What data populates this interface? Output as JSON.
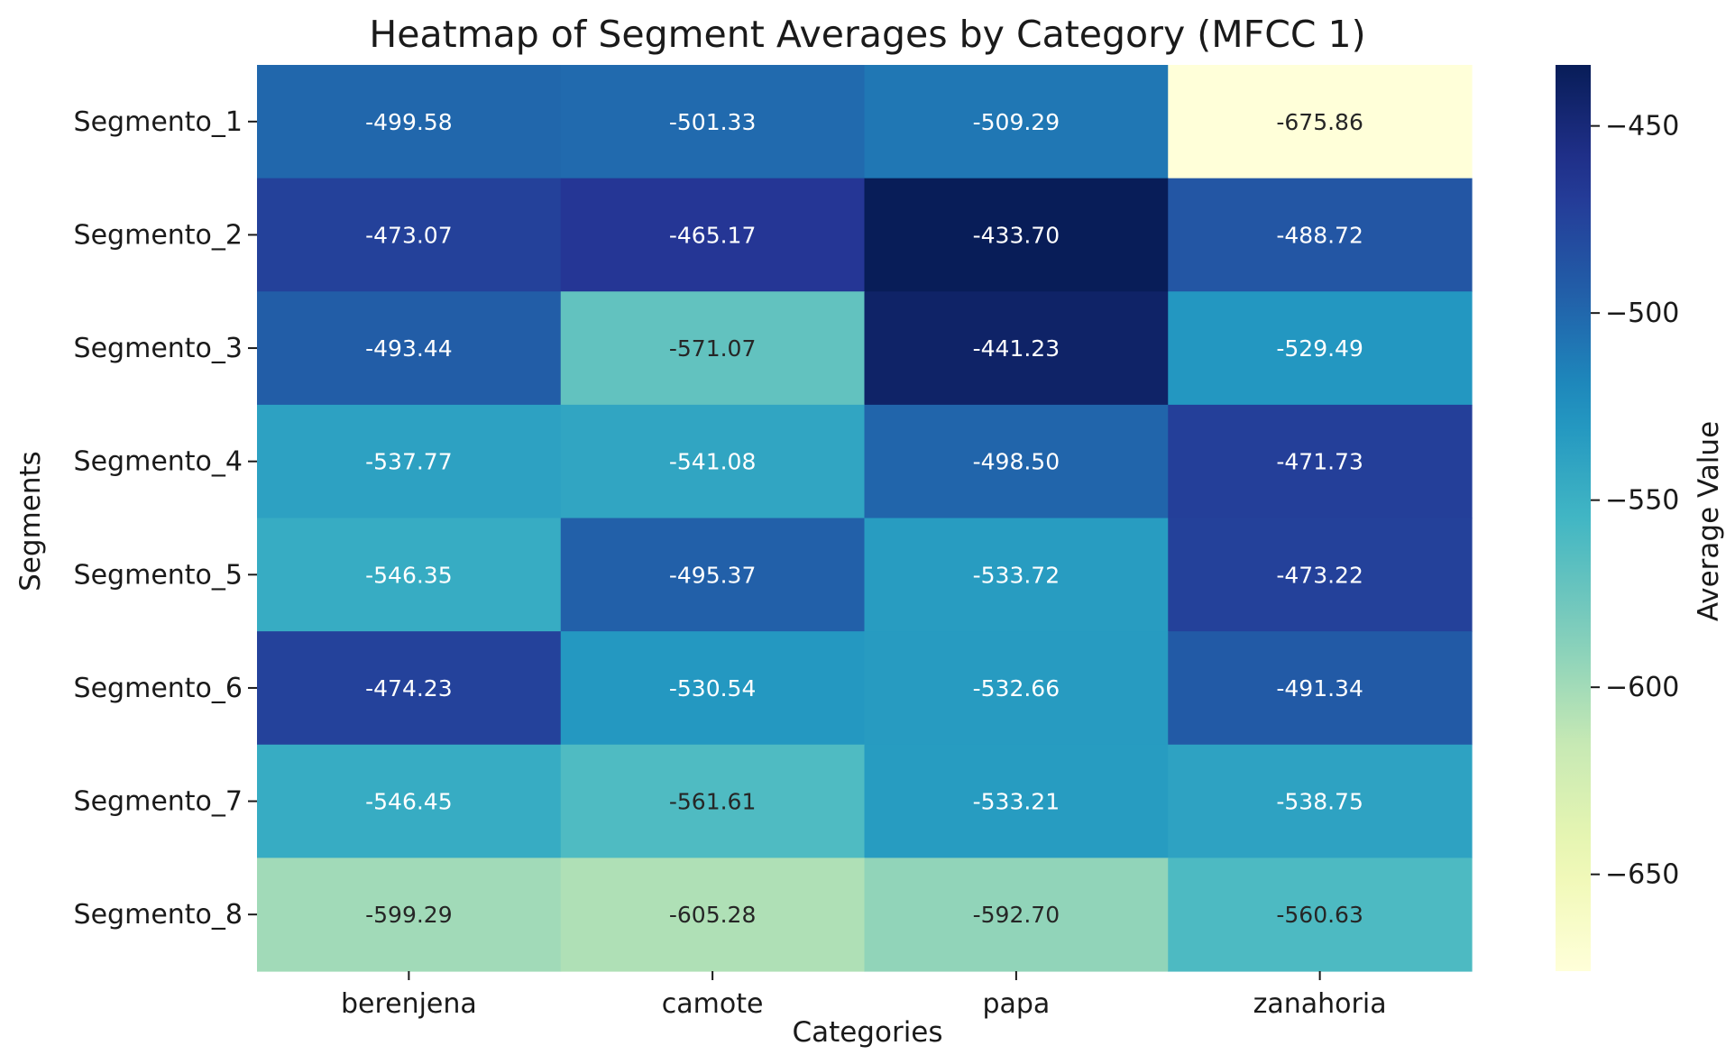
{
  "chart_data": {
    "type": "heatmap",
    "title": "Heatmap of Segment Averages by Category (MFCC 1)",
    "xlabel": "Categories",
    "ylabel": "Segments",
    "colorbar_label": "Average Value",
    "x_categories": [
      "berenjena",
      "camote",
      "papa",
      "zanahoria"
    ],
    "y_categories": [
      "Segmento_1",
      "Segmento_2",
      "Segmento_3",
      "Segmento_4",
      "Segmento_5",
      "Segmento_6",
      "Segmento_7",
      "Segmento_8"
    ],
    "values": [
      [
        -499.58,
        -501.33,
        -509.29,
        -675.86
      ],
      [
        -473.07,
        -465.17,
        -433.7,
        -488.72
      ],
      [
        -493.44,
        -571.07,
        -441.23,
        -529.49
      ],
      [
        -537.77,
        -541.08,
        -498.5,
        -471.73
      ],
      [
        -546.35,
        -495.37,
        -533.72,
        -473.22
      ],
      [
        -474.23,
        -530.54,
        -532.66,
        -491.34
      ],
      [
        -546.45,
        -561.61,
        -533.21,
        -538.75
      ],
      [
        -599.29,
        -605.28,
        -592.7,
        -560.63
      ]
    ],
    "value_labels": [
      [
        "-499.58",
        "-501.33",
        "-509.29",
        "-675.86"
      ],
      [
        "-473.07",
        "-465.17",
        "-433.70",
        "-488.72"
      ],
      [
        "-493.44",
        "-571.07",
        "-441.23",
        "-529.49"
      ],
      [
        "-537.77",
        "-541.08",
        "-498.50",
        "-471.73"
      ],
      [
        "-546.35",
        "-495.37",
        "-533.72",
        "-473.22"
      ],
      [
        "-474.23",
        "-530.54",
        "-532.66",
        "-491.34"
      ],
      [
        "-546.45",
        "-561.61",
        "-533.21",
        "-538.75"
      ],
      [
        "-599.29",
        "-605.28",
        "-592.70",
        "-560.63"
      ]
    ],
    "colormap": "YlGnBu",
    "vmin": -675.86,
    "vmax": -433.7,
    "colorbar_ticks": [
      -450,
      -500,
      -550,
      -600,
      -650
    ],
    "colorbar_tick_labels": [
      "−450",
      "−500",
      "−550",
      "−600",
      "−650"
    ],
    "colorbar_position": "right",
    "grid": false,
    "legend": "none"
  }
}
